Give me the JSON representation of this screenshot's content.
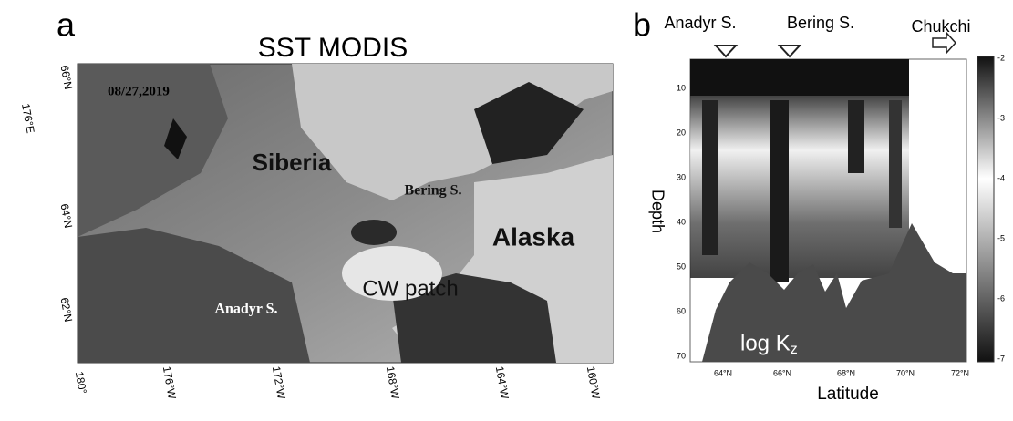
{
  "panel_a": {
    "label": "a",
    "title": "SST MODIS",
    "date": "08/27,2019",
    "lat_labels": [
      "66°N",
      "64°N",
      "62°N"
    ],
    "lon_left_label": "176°E",
    "lon_labels": [
      "180°",
      "176°W",
      "172°W",
      "168°W",
      "164°W",
      "160°W"
    ],
    "places": [
      "Siberia",
      "Bering S.",
      "Alaska",
      "Anadyr S.",
      "CW patch"
    ]
  },
  "panel_b": {
    "label": "b",
    "stations": [
      "Anadyr S.",
      "Bering S.",
      "Chukchi"
    ],
    "y_label": "Depth",
    "x_label": "Latitude",
    "field_label": "log K",
    "field_sub": "z",
    "depth_ticks": [
      "10",
      "20",
      "30",
      "40",
      "50",
      "60",
      "70"
    ],
    "lat_ticks": [
      "64°N",
      "66°N",
      "68°N",
      "70°N",
      "72°N"
    ],
    "colorbar_ticks": [
      "-2",
      "-3",
      "-4",
      "-5",
      "-6",
      "-7"
    ]
  }
}
